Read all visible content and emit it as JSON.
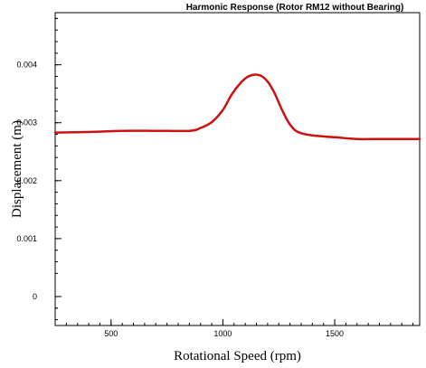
{
  "chart_data": {
    "type": "line",
    "title": "Harmonic Response (Rotor RM12 without Bearing)",
    "xlabel": "Rotational Speed (rpm)",
    "ylabel": "Displacement (m)",
    "xlim": [
      250,
      1880
    ],
    "ylim": [
      -0.0005,
      0.0049
    ],
    "xticks": [
      500,
      1000,
      1500
    ],
    "xtick_labels": [
      "500",
      "1000",
      "1500"
    ],
    "yticks": [
      0,
      0.001,
      0.002,
      0.003,
      0.004
    ],
    "ytick_labels": [
      "0",
      "0.001",
      "0.002",
      "0.003",
      "0.004"
    ],
    "grid": false,
    "legend": "none",
    "series_color": "#cc1111",
    "series": [
      {
        "x": [
          250,
          400,
          550,
          700,
          850,
          900,
          950,
          1000,
          1040,
          1080,
          1110,
          1140,
          1170,
          1200,
          1230,
          1260,
          1290,
          1320,
          1350,
          1400,
          1500,
          1600,
          1700,
          1800,
          1880
        ],
        "values": [
          0.00283,
          0.00284,
          0.00286,
          0.00286,
          0.00286,
          0.00291,
          0.00301,
          0.00322,
          0.00349,
          0.00369,
          0.00379,
          0.00383,
          0.00381,
          0.00371,
          0.00352,
          0.00326,
          0.00303,
          0.00288,
          0.00282,
          0.00278,
          0.00275,
          0.00272,
          0.00272,
          0.00272,
          0.00272
        ]
      }
    ]
  }
}
